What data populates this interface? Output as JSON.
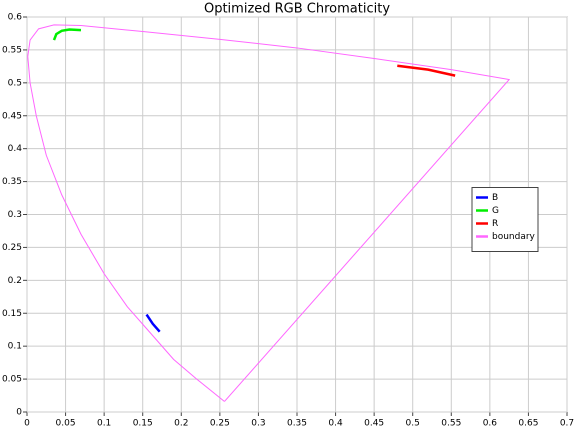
{
  "chart_data": {
    "type": "line",
    "title": "Optimized RGB Chromaticity",
    "xlim": [
      0,
      0.7
    ],
    "ylim": [
      0,
      0.6
    ],
    "xticks": [
      0,
      0.05,
      0.1,
      0.15,
      0.2,
      0.25,
      0.3,
      0.35,
      0.4,
      0.45,
      0.5,
      0.55,
      0.6,
      0.65,
      0.7
    ],
    "yticks": [
      0,
      0.05,
      0.1,
      0.15,
      0.2,
      0.25,
      0.3,
      0.35,
      0.4,
      0.45,
      0.5,
      0.55,
      0.6
    ],
    "grid": true,
    "legend": "center right",
    "series": [
      {
        "name": "B",
        "color": "#0000ff",
        "x": [
          0.155,
          0.163,
          0.172
        ],
        "values": [
          0.148,
          0.134,
          0.122
        ]
      },
      {
        "name": "G",
        "color": "#00ee00",
        "x": [
          0.035,
          0.038,
          0.045,
          0.055,
          0.07
        ],
        "values": [
          0.565,
          0.574,
          0.579,
          0.581,
          0.58
        ]
      },
      {
        "name": "R",
        "color": "#ff0000",
        "x": [
          0.48,
          0.52,
          0.555
        ],
        "values": [
          0.526,
          0.52,
          0.511
        ]
      },
      {
        "name": "boundary",
        "color": "#ff66ff",
        "x": [
          0.256,
          0.22,
          0.19,
          0.16,
          0.13,
          0.1,
          0.07,
          0.045,
          0.025,
          0.012,
          0.004,
          0.001,
          0.004,
          0.015,
          0.035,
          0.07,
          0.15,
          0.25,
          0.35,
          0.45,
          0.55,
          0.625,
          0.256
        ],
        "values": [
          0.016,
          0.05,
          0.08,
          0.12,
          0.16,
          0.21,
          0.27,
          0.33,
          0.39,
          0.45,
          0.5,
          0.54,
          0.565,
          0.582,
          0.588,
          0.587,
          0.578,
          0.566,
          0.553,
          0.537,
          0.52,
          0.505,
          0.016
        ]
      }
    ]
  }
}
